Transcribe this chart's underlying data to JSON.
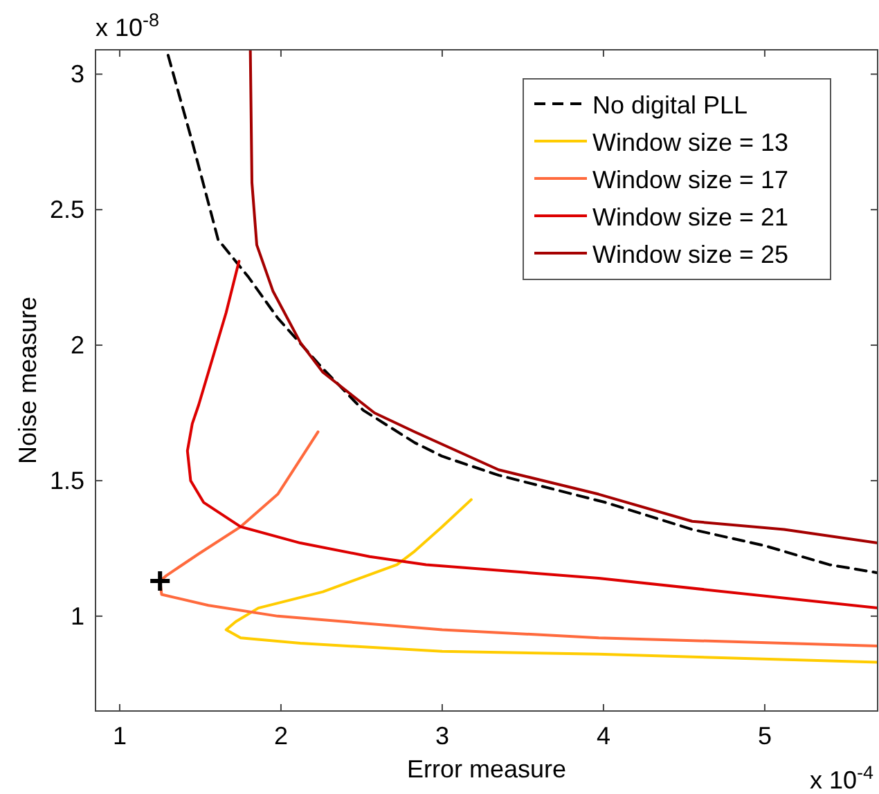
{
  "chart_data": {
    "type": "line",
    "xlabel": "Error measure",
    "ylabel": "Noise measure",
    "annotations": [
      "x 10$^{-8}$",
      "x 10$^{-4}$"
    ],
    "xlim": [
      0.85,
      5.7
    ],
    "ylim": [
      0.65,
      3.09
    ],
    "xticks": [
      1,
      2,
      3,
      4,
      5
    ],
    "yticks": [
      1,
      1.5,
      2,
      2.5,
      3
    ],
    "grid": false,
    "legend": "top right",
    "marker": "none",
    "series": [
      {
        "name": "No digital PLL",
        "color": "#000000",
        "line_style": "dashed",
        "x": [
          1.3,
          1.45,
          1.61,
          1.8,
          1.98,
          2.25,
          2.51,
          2.83,
          3.0,
          3.35,
          4.01,
          4.55,
          5.0,
          5.4,
          5.7
        ],
        "values": [
          3.07,
          2.75,
          2.39,
          2.25,
          2.1,
          1.92,
          1.76,
          1.64,
          1.59,
          1.52,
          1.42,
          1.32,
          1.26,
          1.19,
          1.16
        ]
      },
      {
        "name": "Window size = 13",
        "color": "#ffcc00",
        "x": [
          3.18,
          3.0,
          2.83,
          2.72,
          2.26,
          1.86,
          1.72,
          1.66,
          1.75,
          2.12,
          3.0,
          3.97,
          5.7
        ],
        "values": [
          1.43,
          1.33,
          1.24,
          1.19,
          1.09,
          1.03,
          0.98,
          0.95,
          0.92,
          0.9,
          0.87,
          0.86,
          0.83
        ]
      },
      {
        "name": "Window size = 17",
        "color": "#ff6a3d",
        "x": [
          2.23,
          1.98,
          1.75,
          1.49,
          1.29,
          1.25,
          1.26,
          1.55,
          1.98,
          3.0,
          3.97,
          5.7
        ],
        "values": [
          1.68,
          1.45,
          1.33,
          1.23,
          1.15,
          1.13,
          1.08,
          1.04,
          1.0,
          0.95,
          0.92,
          0.89
        ]
      },
      {
        "name": "Window size = 21",
        "color": "#dd0000",
        "x": [
          1.74,
          1.66,
          1.49,
          1.45,
          1.42,
          1.44,
          1.52,
          1.75,
          2.12,
          2.55,
          2.9,
          3.97,
          5.7
        ],
        "values": [
          2.31,
          2.12,
          1.78,
          1.71,
          1.61,
          1.5,
          1.42,
          1.33,
          1.27,
          1.22,
          1.19,
          1.14,
          1.03
        ]
      },
      {
        "name": "Window size = 25",
        "color": "#a50000",
        "x": [
          1.81,
          1.82,
          1.85,
          1.95,
          2.12,
          2.26,
          2.58,
          2.83,
          3.35,
          3.97,
          4.55,
          5.12,
          5.7
        ],
        "values": [
          3.09,
          2.6,
          2.37,
          2.2,
          2.01,
          1.9,
          1.75,
          1.68,
          1.54,
          1.45,
          1.35,
          1.32,
          1.27
        ]
      },
      {
        "type": "scatter",
        "marker": "cross",
        "color": "#000000",
        "x": [
          1.25
        ],
        "values": [
          1.13
        ]
      }
    ]
  }
}
